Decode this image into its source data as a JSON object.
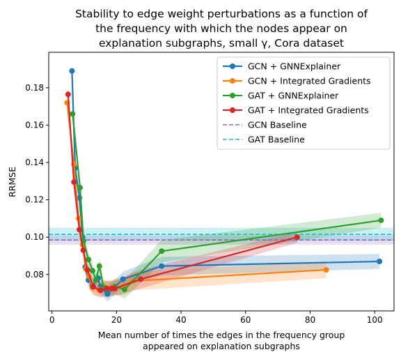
{
  "chart_data": {
    "type": "line",
    "title_lines": [
      "Stability to edge weight perturbations as a function of",
      "the frequency with which the nodes appear on",
      "explanation subgraphs, small γ, Cora dataset"
    ],
    "xlabel_lines": [
      "Mean number of times the edges in the frequency group",
      "appeared on explanation subgraphs"
    ],
    "ylabel": "RRMSE",
    "xlim": [
      -1,
      106
    ],
    "ylim": [
      0.0605,
      0.199
    ],
    "xticks": [
      0,
      20,
      40,
      60,
      80,
      100
    ],
    "yticks": [
      0.08,
      0.1,
      0.12,
      0.14,
      0.16,
      0.18
    ],
    "ytick_labels": [
      "0.08",
      "0.10",
      "0.12",
      "0.14",
      "0.16",
      "0.18"
    ],
    "grid": false,
    "legend_position": "top-right",
    "series": [
      {
        "name": "GCN + GNNExplainer",
        "color": "#1f77b4",
        "x": [
          6.2,
          7.2,
          8.5,
          9.5,
          10.3,
          11.3,
          12.5,
          14.3,
          15.0,
          17.2,
          19.0,
          22.0,
          34.0,
          101.5
        ],
        "y": [
          0.189,
          0.137,
          0.121,
          0.1,
          0.084,
          0.077,
          0.074,
          0.078,
          0.0735,
          0.0695,
          0.0725,
          0.0775,
          0.0845,
          0.087
        ],
        "band": [
          0.004,
          0.004,
          0.004,
          0.004,
          0.004,
          0.004,
          0.004,
          0.004,
          0.004,
          0.004,
          0.004,
          0.004,
          0.005,
          0.004
        ]
      },
      {
        "name": "GCN + Integrated Gradients",
        "color": "#ff7f0e",
        "x": [
          4.7,
          6.8,
          8.3,
          9.5,
          10.5,
          11.5,
          12.5,
          14.5,
          16.8,
          18.5,
          22.5,
          25.0,
          85.0
        ],
        "y": [
          0.172,
          0.139,
          0.11,
          0.096,
          0.083,
          0.079,
          0.073,
          0.072,
          0.073,
          0.073,
          0.074,
          0.0765,
          0.0825
        ],
        "band": [
          0.004,
          0.004,
          0.004,
          0.004,
          0.004,
          0.004,
          0.004,
          0.004,
          0.004,
          0.004,
          0.005,
          0.005,
          0.0045
        ]
      },
      {
        "name": "GAT + GNNExplainer",
        "color": "#2ca02c",
        "x": [
          6.4,
          8.7,
          9.8,
          11.3,
          12.6,
          13.6,
          14.7,
          16.0,
          17.5,
          19.5,
          22.5,
          34.0,
          102.0
        ],
        "y": [
          0.166,
          0.1265,
          0.098,
          0.088,
          0.082,
          0.077,
          0.0845,
          0.073,
          0.072,
          0.0735,
          0.072,
          0.0925,
          0.109
        ],
        "band": [
          0.004,
          0.004,
          0.004,
          0.004,
          0.004,
          0.004,
          0.004,
          0.004,
          0.004,
          0.004,
          0.005,
          0.006,
          0.004
        ]
      },
      {
        "name": "GAT + Integrated Gradients",
        "color": "#d62728",
        "x": [
          5.0,
          6.8,
          8.5,
          9.7,
          11.0,
          12.8,
          15.0,
          17.0,
          18.5,
          19.5,
          27.5,
          76.0
        ],
        "y": [
          0.1765,
          0.1295,
          0.104,
          0.093,
          0.0825,
          0.0735,
          0.0715,
          0.0725,
          0.0725,
          0.0725,
          0.0775,
          0.1
        ],
        "band": [
          0.004,
          0.004,
          0.004,
          0.004,
          0.004,
          0.004,
          0.004,
          0.004,
          0.004,
          0.004,
          0.005,
          0.003
        ]
      }
    ],
    "baselines": [
      {
        "name": "GCN Baseline",
        "color": "#9467bd",
        "value": 0.0985,
        "band": [
          0.096,
          0.101
        ]
      },
      {
        "name": "GAT Baseline",
        "color": "#17becf",
        "value": 0.1015,
        "band": [
          0.098,
          0.105
        ]
      }
    ]
  }
}
